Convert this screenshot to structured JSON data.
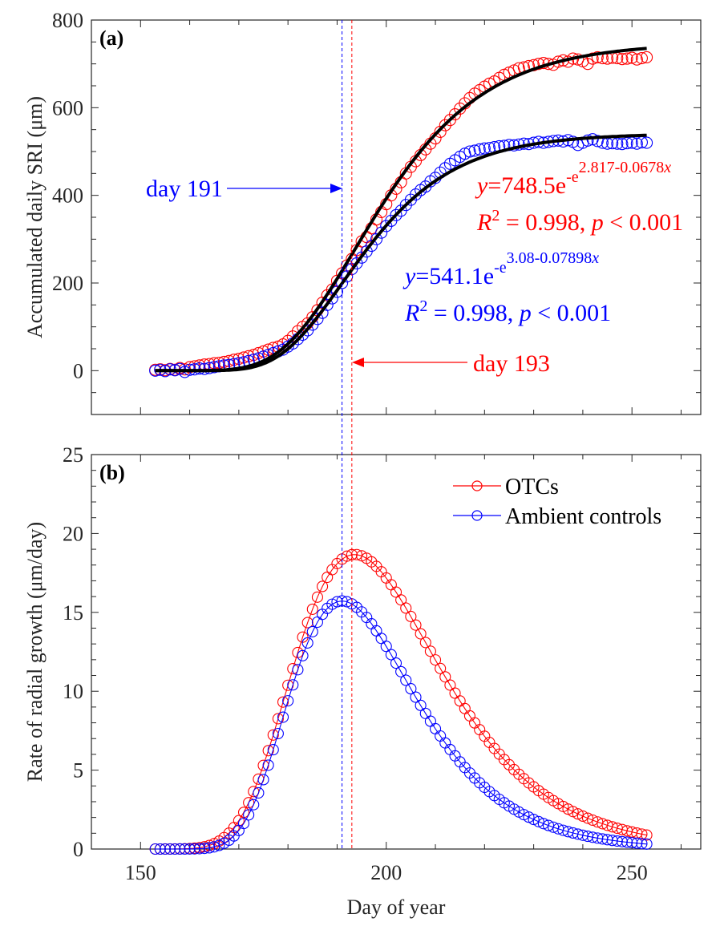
{
  "chart_data": [
    {
      "type": "scatter",
      "panel_label": "(a)",
      "ylabel": "Accumulated daily SRI (μm)",
      "xlim": [
        140,
        264
      ],
      "ylim": [
        -100,
        800
      ],
      "yticks": [
        0,
        200,
        400,
        600,
        800
      ],
      "grid": false,
      "days": [
        153,
        154,
        155,
        156,
        157,
        158,
        159,
        160,
        161,
        162,
        163,
        164,
        165,
        166,
        167,
        168,
        169,
        170,
        171,
        172,
        173,
        174,
        175,
        176,
        177,
        178,
        179,
        180,
        181,
        182,
        183,
        184,
        185,
        186,
        187,
        188,
        189,
        190,
        191,
        192,
        193,
        194,
        195,
        196,
        197,
        198,
        199,
        200,
        201,
        202,
        203,
        204,
        205,
        206,
        207,
        208,
        209,
        210,
        211,
        212,
        213,
        214,
        215,
        216,
        217,
        218,
        219,
        220,
        221,
        222,
        223,
        224,
        225,
        226,
        227,
        228,
        229,
        230,
        231,
        232,
        233,
        234,
        235,
        236,
        237,
        238,
        239,
        240,
        241,
        242,
        243,
        244,
        245,
        246,
        247,
        248,
        249,
        250,
        251,
        252,
        253
      ],
      "series": [
        {
          "key": "otc",
          "color": "#ff0000",
          "observed": [
            2,
            3,
            1,
            4,
            2,
            6,
            3,
            8,
            10,
            12,
            14,
            15,
            17,
            18,
            20,
            22,
            25,
            27,
            30,
            33,
            36,
            40,
            44,
            48,
            52,
            55,
            60,
            68,
            78,
            90,
            100,
            108,
            122,
            138,
            155,
            172,
            185,
            205,
            222,
            240,
            255,
            275,
            295,
            305,
            325,
            345,
            362,
            380,
            400,
            415,
            430,
            450,
            465,
            478,
            492,
            505,
            518,
            530,
            545,
            560,
            572,
            585,
            598,
            610,
            622,
            632,
            640,
            648,
            655,
            660,
            668,
            675,
            680,
            685,
            690,
            692,
            695,
            697,
            700,
            702,
            700,
            698,
            705,
            708,
            705,
            712,
            710,
            706,
            700,
            712,
            715,
            713,
            712,
            714,
            713,
            711,
            712,
            714,
            710,
            713,
            715
          ]
        },
        {
          "key": "ambient",
          "color": "#0000ff",
          "observed": [
            0,
            2,
            -1,
            3,
            1,
            4,
            -3,
            2,
            3,
            5,
            4,
            6,
            8,
            10,
            12,
            13,
            15,
            17,
            19,
            22,
            25,
            28,
            32,
            36,
            40,
            44,
            48,
            55,
            62,
            72,
            82,
            92,
            105,
            118,
            132,
            150,
            165,
            180,
            200,
            215,
            232,
            245,
            258,
            272,
            285,
            300,
            315,
            330,
            342,
            355,
            365,
            378,
            390,
            402,
            412,
            420,
            432,
            440,
            452,
            462,
            472,
            480,
            488,
            495,
            500,
            502,
            505,
            507,
            508,
            510,
            512,
            513,
            515,
            514,
            516,
            518,
            517,
            520,
            522,
            520,
            522,
            524,
            525,
            523,
            526,
            522,
            515,
            520,
            525,
            528,
            524,
            520,
            518,
            519,
            518,
            517,
            519,
            520,
            518,
            521,
            520
          ]
        }
      ],
      "fits": {
        "x_origin_day": 152,
        "otc": {
          "a": 748.5,
          "c": 2.817,
          "b": 0.0678,
          "color": "#000000"
        },
        "ambient": {
          "a": 541.1,
          "c": 3.08,
          "b": 0.07898,
          "color": "#000000"
        }
      },
      "annotations": {
        "otc_eq_main": "=748.5e",
        "otc_eq_exp1": "-e",
        "otc_eq_exp2": "2.817-0.0678",
        "otc_r2": " = 0.998, ",
        "otc_p": " < 0.001",
        "amb_eq_main": "=541.1e",
        "amb_eq_exp1": "-e",
        "amb_eq_exp2": "3.08-0.07898",
        "amb_r2": " = 0.998, ",
        "amb_p": " < 0.001",
        "var_y": "y",
        "var_x": "x",
        "var_R": "R",
        "sq": "2",
        "var_p": "p",
        "day_amb_label": "day 191",
        "day_otc_label": "day 193"
      }
    },
    {
      "type": "line",
      "panel_label": "(b)",
      "xlabel": "Day of year",
      "ylabel": "Rate of radial growth (μm/day)",
      "xlim": [
        140,
        264
      ],
      "ylim": [
        0,
        25
      ],
      "xticks": [
        150,
        200,
        250
      ],
      "yticks": [
        0,
        5,
        10,
        15,
        20,
        25
      ],
      "grid": false,
      "legend": {
        "placement": "top-right",
        "entries": [
          "OTCs",
          "Ambient controls"
        ]
      },
      "series_source": "derivative of fits in panel (a)",
      "series": [
        {
          "name": "OTCs",
          "key": "otc",
          "color": "#ff0000",
          "peak_day": 193,
          "peak_value": 18.7
        },
        {
          "name": "Ambient controls",
          "key": "ambient",
          "color": "#0000ff",
          "peak_day": 191,
          "peak_value": 15.7
        }
      ]
    }
  ],
  "vlines": [
    {
      "day": 191,
      "color": "#0000ff"
    },
    {
      "day": 193,
      "color": "#ff0000"
    }
  ]
}
